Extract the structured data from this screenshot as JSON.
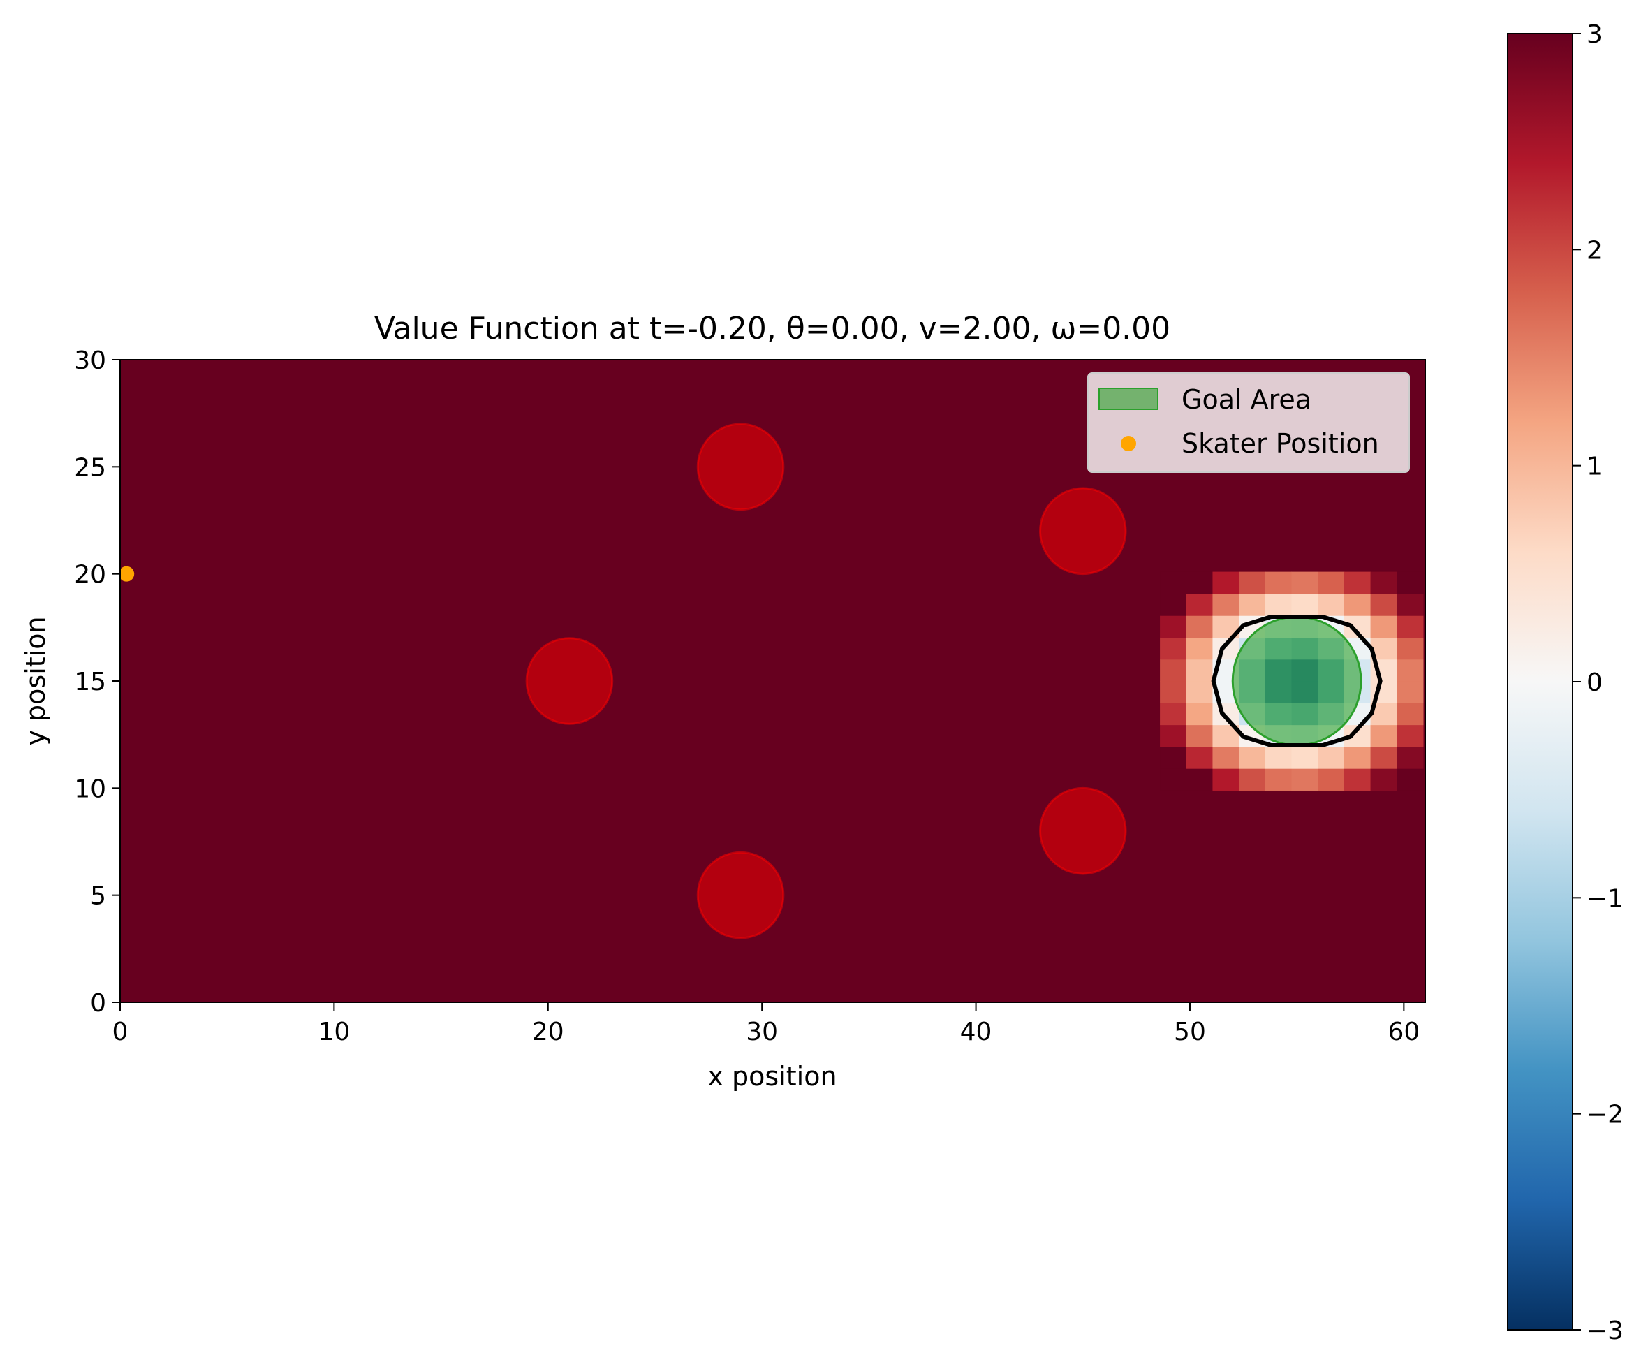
{
  "chart_data": {
    "type": "heatmap",
    "title": "Value Function at t=-0.20, θ=0.00, v=2.00, ω=0.00",
    "xlabel": "x position",
    "ylabel": "y position",
    "xlim": [
      0,
      61
    ],
    "ylim": [
      0,
      30
    ],
    "xticks": [
      0,
      10,
      20,
      30,
      40,
      50,
      60
    ],
    "yticks": [
      0,
      5,
      10,
      15,
      20,
      25,
      30
    ],
    "grid": false,
    "colorbar": {
      "colormap": "RdBu_r",
      "min": -3,
      "max": 3,
      "ticks": [
        3,
        2,
        1,
        0,
        -1,
        -2,
        -3
      ],
      "tick_labels": [
        "3",
        "2",
        "1",
        "0",
        "−1",
        "−2",
        "−3"
      ]
    },
    "heatmap_region": {
      "x_range": [
        48.6,
        60.9
      ],
      "y_range": [
        9.9,
        20.1
      ],
      "cells_per_row": 10,
      "center": [
        55,
        15
      ],
      "background_value": 3
    },
    "obstacles": [
      {
        "x": 29,
        "y": 25,
        "r": 2
      },
      {
        "x": 45,
        "y": 22,
        "r": 2
      },
      {
        "x": 21,
        "y": 15,
        "r": 2
      },
      {
        "x": 45,
        "y": 8,
        "r": 2
      },
      {
        "x": 29,
        "y": 5,
        "r": 2
      }
    ],
    "goal_area": {
      "x": 55,
      "y": 15,
      "r": 3
    },
    "zero_level_contour": [
      [
        51.1,
        15
      ],
      [
        51.5,
        16.5
      ],
      [
        52.5,
        17.6
      ],
      [
        53.8,
        18.0
      ],
      [
        56.2,
        18.0
      ],
      [
        57.5,
        17.6
      ],
      [
        58.5,
        16.5
      ],
      [
        58.9,
        15
      ],
      [
        58.5,
        13.5
      ],
      [
        57.5,
        12.4
      ],
      [
        56.2,
        12.0
      ],
      [
        53.8,
        12.0
      ],
      [
        52.5,
        12.4
      ],
      [
        51.5,
        13.5
      ]
    ],
    "skater_position": {
      "x": 0.3,
      "y": 20
    },
    "legend": {
      "placement": "upper right",
      "entries": [
        "Goal Area",
        "Skater Position"
      ]
    },
    "colors": {
      "background": "#67001f",
      "obstacle": "#b2000f",
      "goal": "#2ca02c",
      "skater": "#ffa500",
      "contour": "#000000"
    }
  }
}
